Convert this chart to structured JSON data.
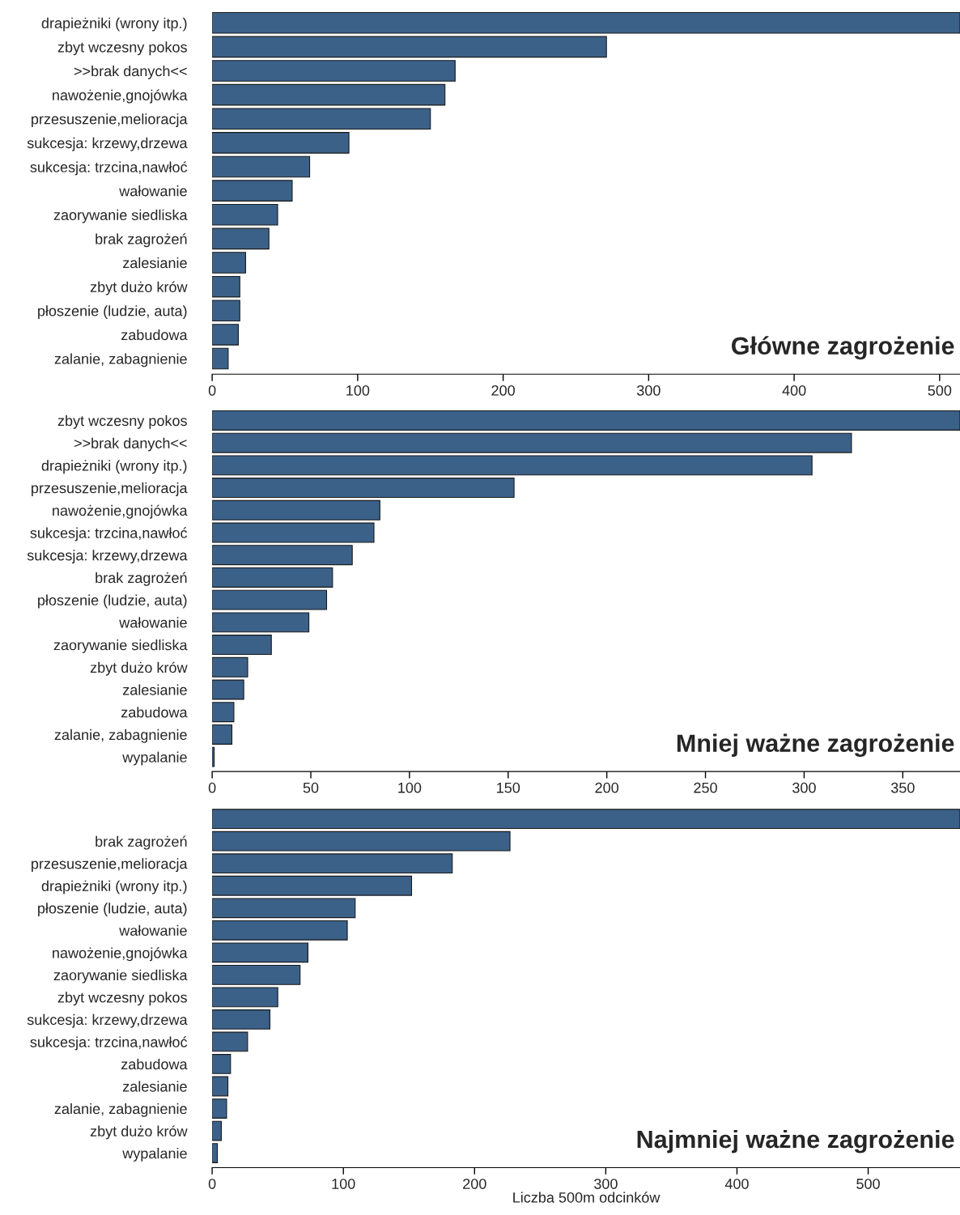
{
  "chart_data": [
    {
      "type": "bar",
      "orientation": "horizontal",
      "title": "Główne zagrożenie",
      "color": "#3b6189",
      "categories": [
        "drapieżniki (wrony itp.)",
        "zbyt wczesny pokos",
        ">>brak danych<<",
        "nawożenie,gnojówka",
        "przesuszenie,melioracja",
        "sukcesja: krzewy,drzewa",
        "sukcesja: trzcina,nawłoć",
        "wałowanie",
        "zaorywanie siedliska",
        "brak zagrożeń",
        "zalesianie",
        "zbyt dużo krów",
        "płoszenie (ludzie, auta)",
        "zabudowa",
        "zalanie, zabagnienie"
      ],
      "values": [
        514,
        271,
        167,
        160,
        150,
        94,
        67,
        55,
        45,
        39,
        23,
        19,
        19,
        18,
        11
      ],
      "xlim": [
        0,
        514
      ],
      "xticks": [
        0,
        100,
        200,
        300,
        400,
        500
      ],
      "grid": false,
      "legend": false
    },
    {
      "type": "bar",
      "orientation": "horizontal",
      "title": "Mniej ważne zagrożenie",
      "color": "#3b6189",
      "categories": [
        "zbyt wczesny pokos",
        ">>brak danych<<",
        "drapieżniki (wrony itp.)",
        "przesuszenie,melioracja",
        "nawożenie,gnojówka",
        "sukcesja: trzcina,nawłoć",
        "sukcesja: krzewy,drzewa",
        "brak zagrożeń",
        "płoszenie (ludzie, auta)",
        "wałowanie",
        "zaorywanie siedliska",
        "zbyt dużo krów",
        "zalesianie",
        "zabudowa",
        "zalanie, zabagnienie",
        "wypalanie"
      ],
      "values": [
        379,
        324,
        304,
        153,
        85,
        82,
        71,
        61,
        58,
        49,
        30,
        18,
        16,
        11,
        10,
        1
      ],
      "xlim": [
        0,
        379
      ],
      "xticks": [
        0,
        50,
        100,
        150,
        200,
        250,
        300,
        350
      ],
      "grid": false,
      "legend": false
    },
    {
      "type": "bar",
      "orientation": "horizontal",
      "title": "Najmniej ważne zagrożenie",
      "xlabel": "Liczba 500m odcinków",
      "color": "#3b6189",
      "categories": [
        null,
        "brak zagrożeń",
        "przesuszenie,melioracja",
        "drapieżniki (wrony itp.)",
        "płoszenie (ludzie, auta)",
        "wałowanie",
        "nawożenie,gnojówka",
        "zaorywanie siedliska",
        "zbyt wczesny pokos",
        "sukcesja: krzewy,drzewa",
        "sukcesja: trzcina,nawłoć",
        "zabudowa",
        "zalesianie",
        "zalanie, zabagnienie",
        "zbyt dużo krów",
        "wypalanie"
      ],
      "values": [
        570,
        227,
        183,
        152,
        109,
        103,
        73,
        67,
        50,
        44,
        27,
        14,
        12,
        11,
        7,
        4
      ],
      "xlim": [
        0,
        570
      ],
      "xticks": [
        0,
        100,
        200,
        300,
        400,
        500
      ],
      "grid": false,
      "legend": false
    }
  ]
}
